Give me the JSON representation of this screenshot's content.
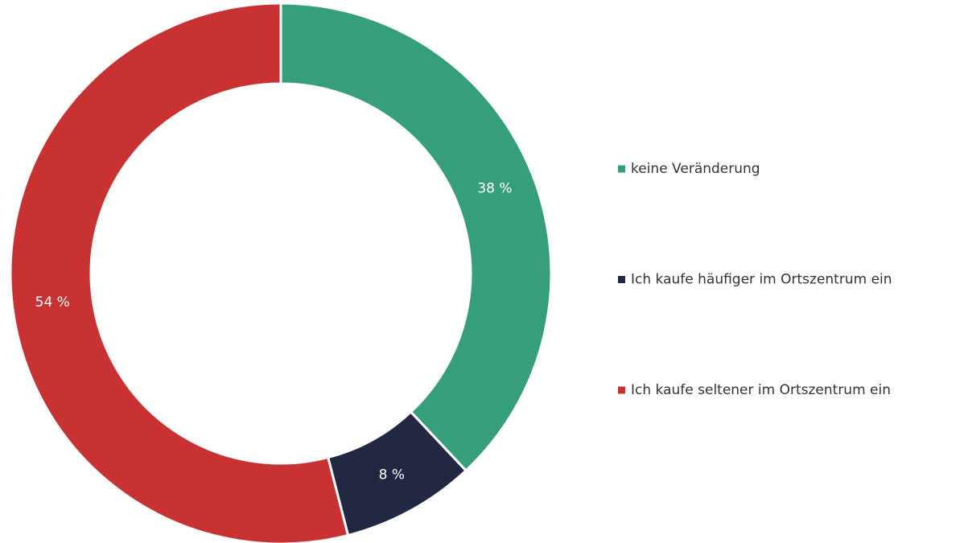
{
  "chart_data": {
    "type": "pie",
    "donut": true,
    "categories": [
      "keine Veränderung",
      "Ich kaufe häufiger im Ortszentrum ein",
      "Ich kaufe seltener im Ortszentrum ein"
    ],
    "values": [
      38,
      8,
      54
    ],
    "value_labels": [
      "38 %",
      "8 %",
      "54 %"
    ],
    "colors": [
      "#379e7a",
      "#222842",
      "#c93232"
    ],
    "legend": "right"
  }
}
